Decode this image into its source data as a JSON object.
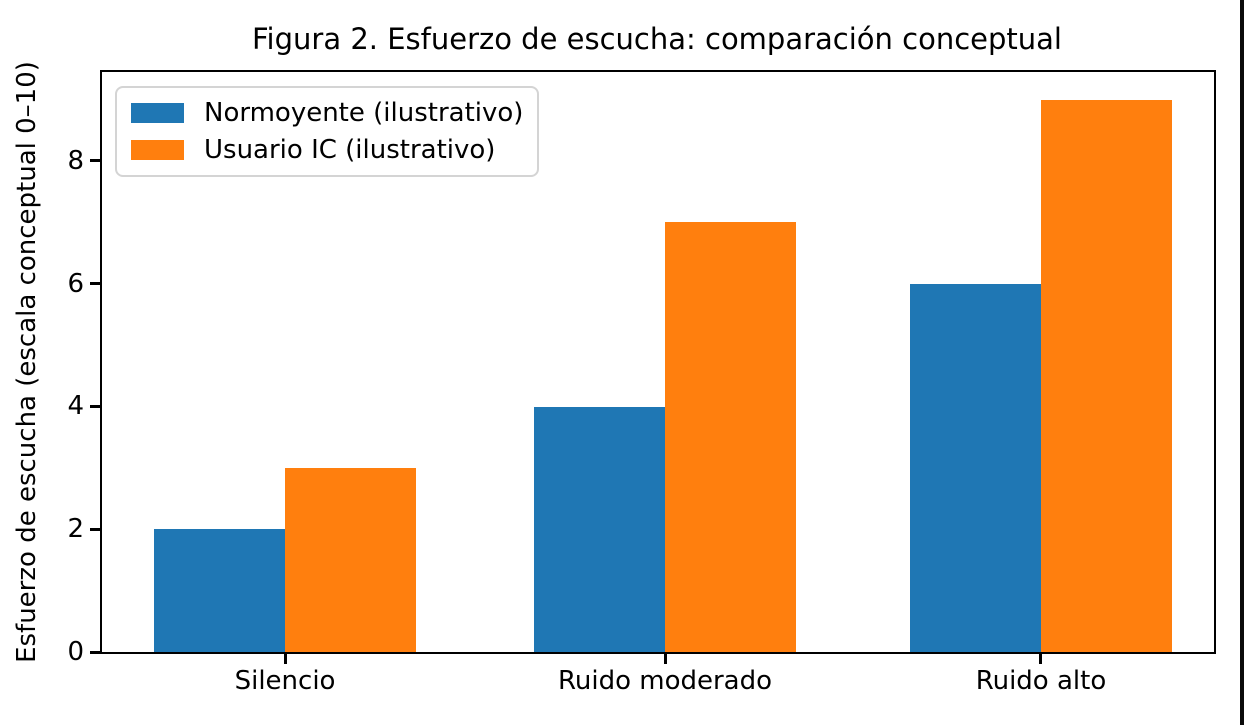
{
  "chart_data": {
    "type": "bar",
    "title": "Figura 2. Esfuerzo de escucha: comparación conceptual",
    "ylabel": "Esfuerzo de escucha (escala conceptual 0–10)",
    "xlabel": "",
    "categories": [
      "Silencio",
      "Ruido moderado",
      "Ruido alto"
    ],
    "series": [
      {
        "name": "Normoyente (ilustrativo)",
        "values": [
          2,
          4,
          6
        ],
        "color": "#1f77b4"
      },
      {
        "name": "Usuario IC (ilustrativo)",
        "values": [
          3,
          7,
          9
        ],
        "color": "#ff7f0e"
      }
    ],
    "ylim": [
      0,
      9.45
    ],
    "yticks": [
      0,
      2,
      4,
      6,
      8
    ],
    "grid": false,
    "legend_position": "upper left",
    "background_color": "#ffffff",
    "spine_color": "#000000"
  }
}
